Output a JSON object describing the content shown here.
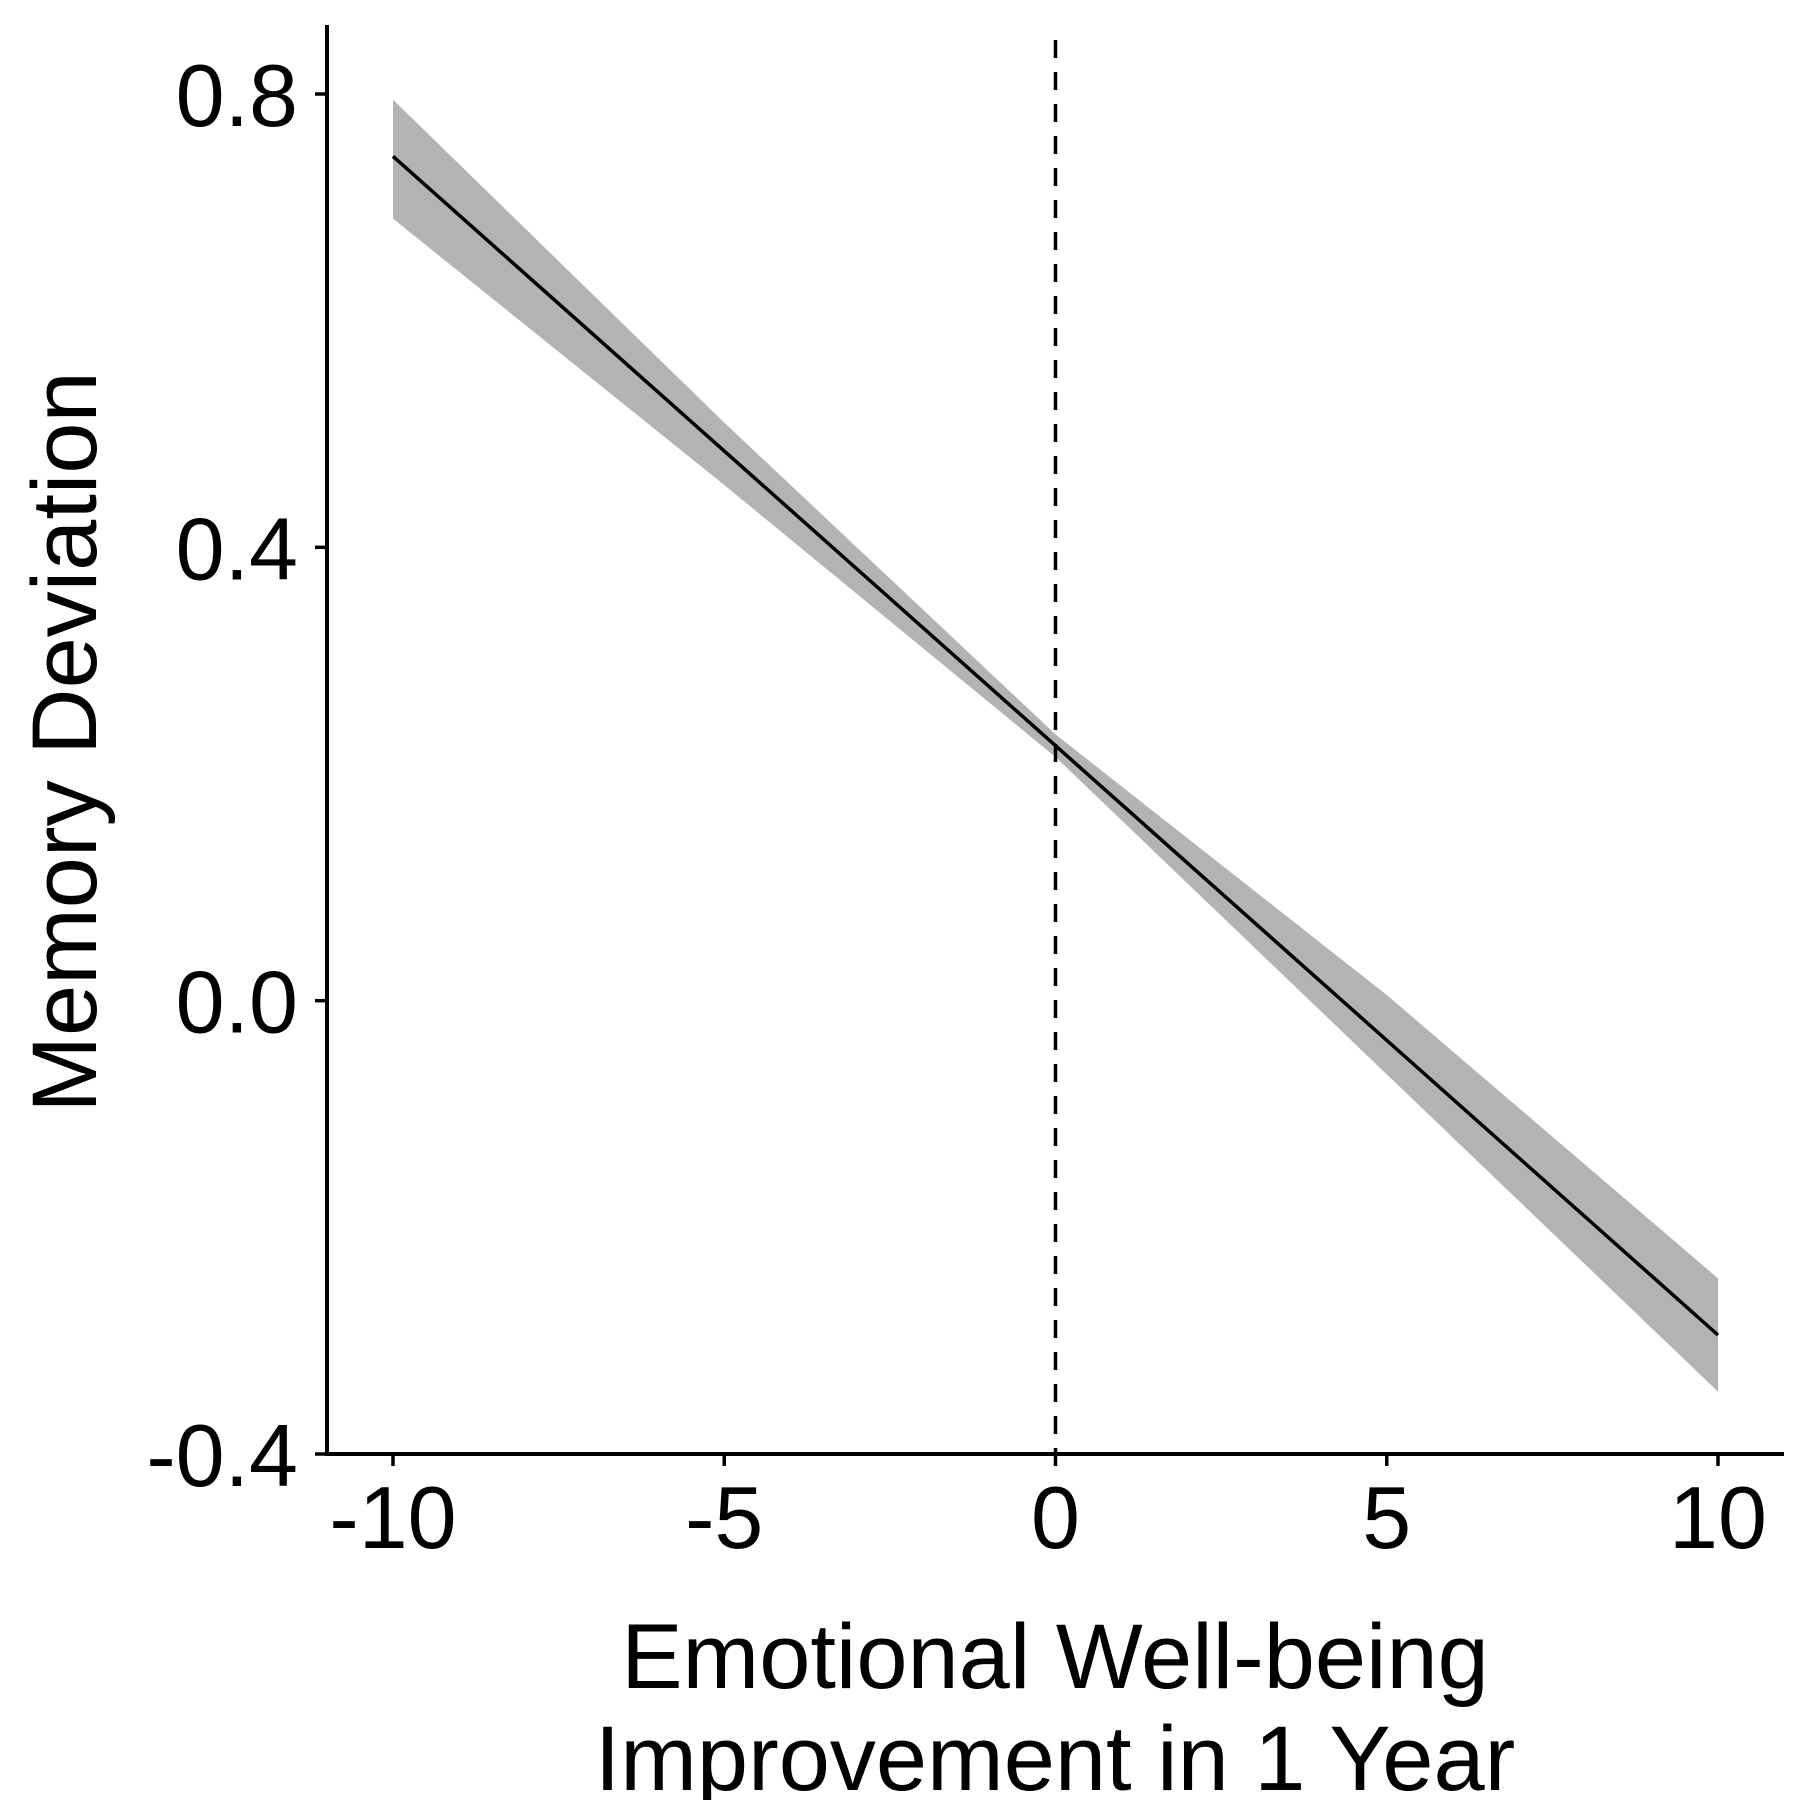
{
  "chart_data": {
    "type": "line",
    "title": "",
    "xlabel_lines": [
      "Emotional Well-being",
      "Improvement in 1 Year"
    ],
    "ylabel": "Memory Deviation",
    "xlim": [
      -11,
      11
    ],
    "ylim": [
      -0.4,
      0.8
    ],
    "x_ticks": [
      -10,
      -5,
      0,
      5,
      10
    ],
    "x_tick_labels": [
      "-10",
      "-5",
      "0",
      "5",
      "10"
    ],
    "y_ticks": [
      -0.4,
      0.0,
      0.4,
      0.8
    ],
    "y_tick_labels": [
      "-0.4",
      "0.0",
      "0.4",
      "0.8"
    ],
    "reference_line": {
      "axis": "x",
      "value": 0,
      "style": "dashed"
    },
    "series": [
      {
        "x": [
          -10,
          10
        ],
        "y": [
          0.745,
          -0.295
        ],
        "ci_lower": [
          0.69,
          -0.345
        ],
        "ci_upper": [
          0.795,
          -0.245
        ]
      }
    ],
    "ci_band_x": [
      -10,
      -5,
      0,
      5,
      10
    ],
    "ci_band_lower": [
      0.69,
      0.455,
      0.215,
      -0.065,
      -0.345
    ],
    "ci_band_upper": [
      0.795,
      0.51,
      0.235,
      0.005,
      -0.245
    ],
    "grid": false,
    "colors": {
      "line": "#000000",
      "band": "#b3b3b3",
      "axis": "#000000",
      "background": "#ffffff"
    }
  }
}
